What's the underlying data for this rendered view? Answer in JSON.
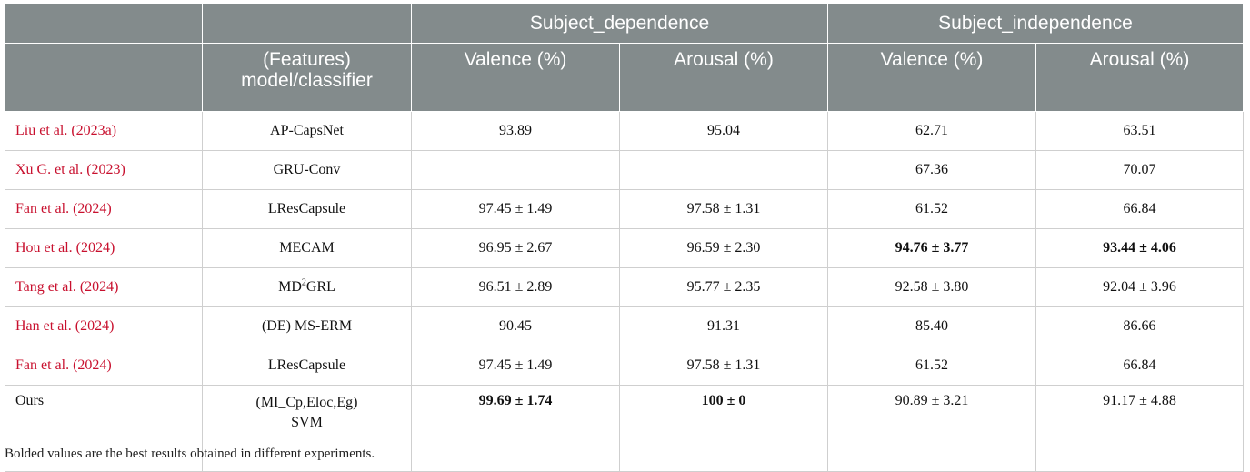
{
  "header": {
    "group1": "Subject_dependence",
    "group2": "Subject_independence",
    "features_line1": "(Features)",
    "features_line2": "model/classifier",
    "valence": "Valence (%)",
    "arousal": "Arousal (%)"
  },
  "rows": [
    {
      "ref": "Liu et al. (2023a)",
      "model": "AP-CapsNet",
      "dep_val": "93.89",
      "dep_aro": "95.04",
      "ind_val": "62.71",
      "ind_aro": "63.51"
    },
    {
      "ref": "Xu G. et al. (2023)",
      "model": "GRU-Conv",
      "dep_val": "",
      "dep_aro": "",
      "ind_val": "67.36",
      "ind_aro": "70.07"
    },
    {
      "ref": "Fan et al. (2024)",
      "model": "LResCapsule",
      "dep_val": "97.45 ± 1.49",
      "dep_aro": "97.58 ± 1.31",
      "ind_val": "61.52",
      "ind_aro": "66.84"
    },
    {
      "ref": "Hou et al. (2024)",
      "model": "MECAM",
      "dep_val": "96.95 ± 2.67",
      "dep_aro": "96.59 ± 2.30",
      "ind_val": "94.76 ± 3.77",
      "ind_aro": "93.44 ± 4.06"
    },
    {
      "ref": "Tang et al. (2024)",
      "model_pre": "MD",
      "model_sup": "2",
      "model_post": "GRL",
      "dep_val": "96.51 ± 2.89",
      "dep_aro": "95.77 ± 2.35",
      "ind_val": "92.58 ± 3.80",
      "ind_aro": "92.04 ± 3.96"
    },
    {
      "ref": "Han et al. (2024)",
      "model": "(DE) MS-ERM",
      "dep_val": "90.45",
      "dep_aro": "91.31",
      "ind_val": "85.40",
      "ind_aro": "86.66"
    },
    {
      "ref": "Fan et al. (2024)",
      "model": "LResCapsule",
      "dep_val": "97.45 ± 1.49",
      "dep_aro": "97.58 ± 1.31",
      "ind_val": "61.52",
      "ind_aro": "66.84"
    },
    {
      "ref": "Ours",
      "model_line1": "(MI_Cp,Eloc,Eg)",
      "model_line2": "SVM",
      "dep_val": "99.69 ± 1.74",
      "dep_aro": "100 ± 0",
      "ind_val": "90.89 ± 3.21",
      "ind_aro": "91.17 ± 4.88"
    }
  ],
  "footnote": "Bolded values are the best results obtained in different experiments.",
  "colors": {
    "header_bg": "#838b8c",
    "reference_link": "#c8102e"
  }
}
